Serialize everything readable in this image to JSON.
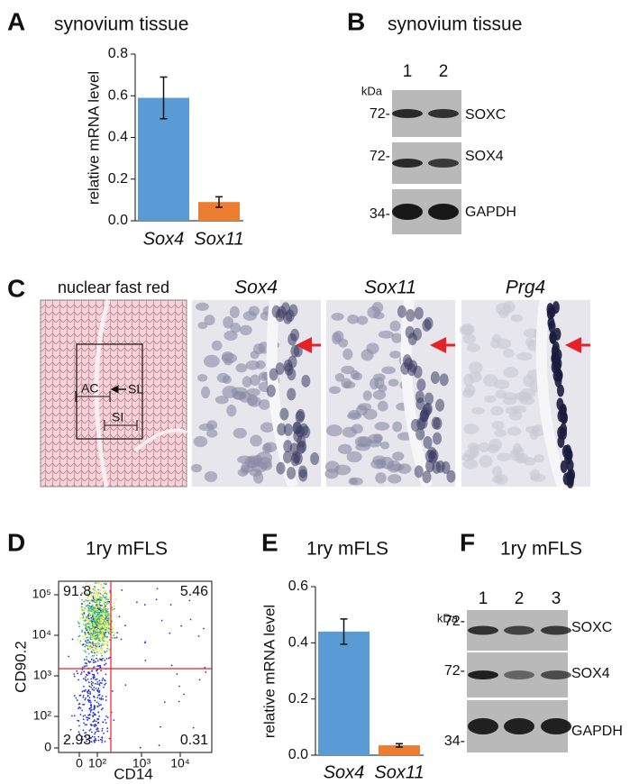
{
  "panel_labels": [
    "A",
    "B",
    "C",
    "D",
    "E",
    "F"
  ],
  "chart_data": [
    {
      "type": "bar",
      "title": "synovium tissue",
      "y_label": "relative mRNA level",
      "categories": [
        "Sox4",
        "Sox11"
      ],
      "values": [
        0.59,
        0.09
      ],
      "errors": [
        0.1,
        0.025
      ],
      "colors": [
        "#5b9bd5",
        "#ed7d31"
      ],
      "ylim": [
        0,
        0.8
      ],
      "yticks": [
        {
          "value": 0,
          "label": "0.0"
        },
        0.2,
        0.4,
        0.6,
        0.8
      ]
    },
    {
      "type": "bar",
      "title": "1ry mFLS",
      "y_label": "relative mRNA level",
      "categories": [
        "Sox4",
        "Sox11"
      ],
      "values": [
        0.44,
        0.035
      ],
      "errors": [
        0.045,
        0.006
      ],
      "colors": [
        "#5b9bd5",
        "#ed7d31"
      ],
      "ylim": [
        0,
        0.6
      ],
      "yticks": [
        {
          "value": 0,
          "label": "0.0"
        },
        0.2,
        0.4,
        0.6
      ]
    }
  ],
  "blot_b": {
    "title": "synovium tissue",
    "unit": "kDa",
    "lanes": [
      "1",
      "2"
    ],
    "markers": [
      "72-",
      "72-",
      "34-"
    ],
    "bands": [
      "SOXC",
      "SOX4",
      "GAPDH"
    ]
  },
  "staining": {
    "titles": [
      "nuclear fast red",
      "Sox4",
      "Sox11",
      "Prg4"
    ],
    "annotations": [
      "AC",
      "SL",
      "SI"
    ]
  },
  "flow": {
    "title": "1ry mFLS",
    "x_label": "CD14",
    "y_label": "CD90.2",
    "quadrants": [
      91.8,
      5.46,
      2.93,
      0.31
    ],
    "xticks": [
      "0",
      "10²",
      "10³",
      "10⁴"
    ],
    "yticks": [
      "0",
      "10²",
      "10³",
      "10⁴",
      "10⁵"
    ]
  },
  "blot_f": {
    "title": "1ry mFLS",
    "unit": "kDa",
    "lanes": [
      "1",
      "2",
      "3"
    ],
    "markers": [
      "72-",
      "72-",
      "34-"
    ],
    "bands": [
      "SOXC",
      "SOX4",
      "GAPDH"
    ]
  }
}
